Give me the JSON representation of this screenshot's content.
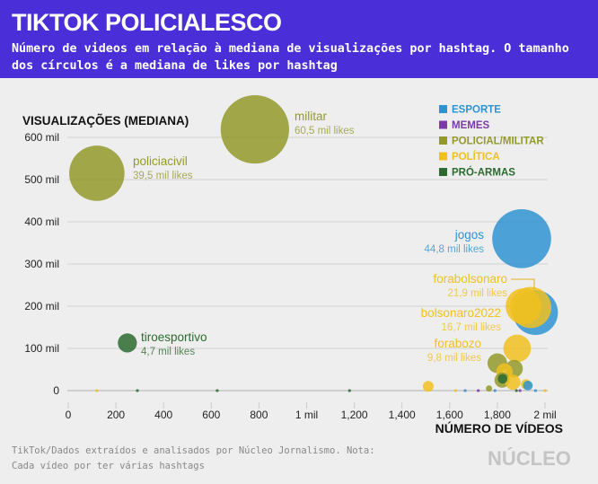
{
  "header": {
    "title": "TIKTOK POLICIALESCO",
    "subtitle": "Número de videos em relação à mediana de visualizações por hashtag. O tamanho dos círculos é a mediana de likes por hashtag"
  },
  "footer": {
    "source": "TikTok/Dados extraídos e analisados por Núcleo Jornalismo. Nota: Cada vídeo por ter várias hashtags",
    "logo": "NÚCLEO"
  },
  "chart_data": {
    "type": "scatter",
    "xlabel": "NÚMERO DE VÍDEOS",
    "ylabel": "VISUALIZAÇÕES (MEDIANA)",
    "xlim": [
      0,
      2000
    ],
    "ylim": [
      0,
      600
    ],
    "x_ticks": [
      {
        "v": 0,
        "l": "0"
      },
      {
        "v": 200,
        "l": "200"
      },
      {
        "v": 400,
        "l": "400"
      },
      {
        "v": 600,
        "l": "600"
      },
      {
        "v": 800,
        "l": "800"
      },
      {
        "v": 1000,
        "l": "1 mil"
      },
      {
        "v": 1200,
        "l": "1,200"
      },
      {
        "v": 1400,
        "l": "1,400"
      },
      {
        "v": 1600,
        "l": "1,600"
      },
      {
        "v": 1800,
        "l": "1,800"
      },
      {
        "v": 2000,
        "l": "2 mil"
      }
    ],
    "y_ticks": [
      {
        "v": 0,
        "l": "0"
      },
      {
        "v": 100,
        "l": "100 mil"
      },
      {
        "v": 200,
        "l": "200 mil"
      },
      {
        "v": 300,
        "l": "300 mil"
      },
      {
        "v": 400,
        "l": "400 mil"
      },
      {
        "v": 500,
        "l": "500 mil"
      },
      {
        "v": 600,
        "l": "600 mil"
      }
    ],
    "legend": [
      {
        "name": "ESPORTE",
        "color": "#2f93d1"
      },
      {
        "name": "MEMES",
        "color": "#7a3aa8"
      },
      {
        "name": "POLICIAL/MILITAR",
        "color": "#939a2c"
      },
      {
        "name": "POLÍTICA",
        "color": "#f0c020"
      },
      {
        "name": "PRÓ-ARMAS",
        "color": "#2d6a30"
      }
    ],
    "points": [
      {
        "name": "militar",
        "cat": 2,
        "x": 783,
        "y": 619,
        "likes": 60.5,
        "likes_label": "60,5 mil likes"
      },
      {
        "name": "policiacivil",
        "cat": 2,
        "x": 120,
        "y": 515,
        "likes": 39.5,
        "likes_label": "39,5 mil likes"
      },
      {
        "name": "jogos",
        "cat": 0,
        "x": 1902,
        "y": 360,
        "likes": 44.8,
        "likes_label": "44,8 mil likes"
      },
      {
        "name": "",
        "cat": 0,
        "x": 1960,
        "y": 185,
        "likes": 26
      },
      {
        "name": "forabolsonaro",
        "cat": 3,
        "x": 1940,
        "y": 197,
        "likes": 21.9,
        "likes_label": "21,9 mil likes"
      },
      {
        "name": "bolsonaro2022",
        "cat": 3,
        "x": 1910,
        "y": 200,
        "likes": 16.7,
        "likes_label": "16,7 mil likes"
      },
      {
        "name": "forabozo",
        "cat": 3,
        "x": 1883,
        "y": 100,
        "likes": 9.8,
        "likes_label": "9,8 mil likes"
      },
      {
        "name": "tiroesportivo",
        "cat": 4,
        "x": 248,
        "y": 113,
        "likes": 4.7,
        "likes_label": "4,7 mil likes"
      },
      {
        "name": "",
        "cat": 3,
        "x": 1510,
        "y": 10,
        "likes": 1.5
      },
      {
        "name": "",
        "cat": 2,
        "x": 1800,
        "y": 65,
        "likes": 5
      },
      {
        "name": "",
        "cat": 2,
        "x": 1870,
        "y": 52,
        "likes": 4
      },
      {
        "name": "",
        "cat": 3,
        "x": 1830,
        "y": 45,
        "likes": 3.5
      },
      {
        "name": "",
        "cat": 2,
        "x": 1820,
        "y": 25,
        "likes": 3
      },
      {
        "name": "",
        "cat": 3,
        "x": 1865,
        "y": 20,
        "likes": 3
      },
      {
        "name": "",
        "cat": 4,
        "x": 1822,
        "y": 28,
        "likes": 1.2
      },
      {
        "name": "",
        "cat": 3,
        "x": 1920,
        "y": 15,
        "likes": 1.3
      },
      {
        "name": "",
        "cat": 0,
        "x": 1928,
        "y": 12,
        "likes": 1.2
      },
      {
        "name": "",
        "cat": 2,
        "x": 1765,
        "y": 5,
        "likes": 0.5
      },
      {
        "name": "",
        "cat": 3,
        "x": 120,
        "y": 0,
        "likes": 0.05
      },
      {
        "name": "",
        "cat": 4,
        "x": 290,
        "y": 0,
        "likes": 0.05
      },
      {
        "name": "",
        "cat": 4,
        "x": 625,
        "y": 0,
        "likes": 0.05
      },
      {
        "name": "",
        "cat": 4,
        "x": 1180,
        "y": 0,
        "likes": 0.05
      },
      {
        "name": "",
        "cat": 3,
        "x": 1625,
        "y": 0,
        "likes": 0.05
      },
      {
        "name": "",
        "cat": 0,
        "x": 1665,
        "y": 0,
        "likes": 0.05
      },
      {
        "name": "",
        "cat": 1,
        "x": 1720,
        "y": 0,
        "likes": 0.05
      },
      {
        "name": "",
        "cat": 0,
        "x": 1790,
        "y": 0,
        "likes": 0.05
      },
      {
        "name": "",
        "cat": 1,
        "x": 1895,
        "y": 0,
        "likes": 0.05
      },
      {
        "name": "",
        "cat": 4,
        "x": 1880,
        "y": 0,
        "likes": 0.05
      },
      {
        "name": "",
        "cat": 0,
        "x": 1960,
        "y": 0,
        "likes": 0.05
      },
      {
        "name": "",
        "cat": 3,
        "x": 2000,
        "y": 0,
        "likes": 0.05
      }
    ]
  }
}
